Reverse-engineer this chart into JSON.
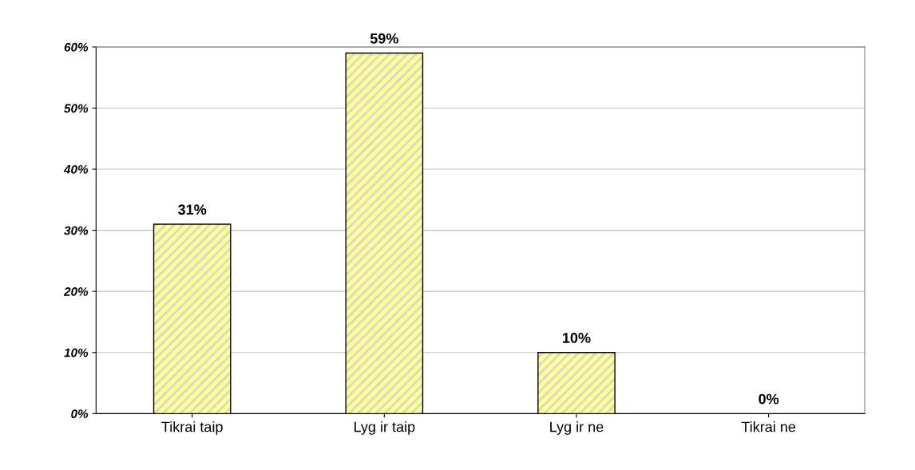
{
  "chart_data": {
    "type": "bar",
    "categories": [
      "Tikrai taip",
      "Lyg ir taip",
      "Lyg ir ne",
      "Tikrai ne"
    ],
    "values": [
      31,
      59,
      10,
      0
    ],
    "value_labels": [
      "31%",
      "59%",
      "10%",
      "0%"
    ],
    "color": "#ffff99",
    "ylim": [
      0,
      60
    ],
    "yticks": [
      {
        "value": 0,
        "label": "0%"
      },
      {
        "value": 10,
        "label": "10%"
      },
      {
        "value": 20,
        "label": "20%"
      },
      {
        "value": 30,
        "label": "30%"
      },
      {
        "value": 40,
        "label": "40%"
      },
      {
        "value": 50,
        "label": "50%"
      },
      {
        "value": 60,
        "label": "60%"
      }
    ],
    "grid": "y"
  }
}
